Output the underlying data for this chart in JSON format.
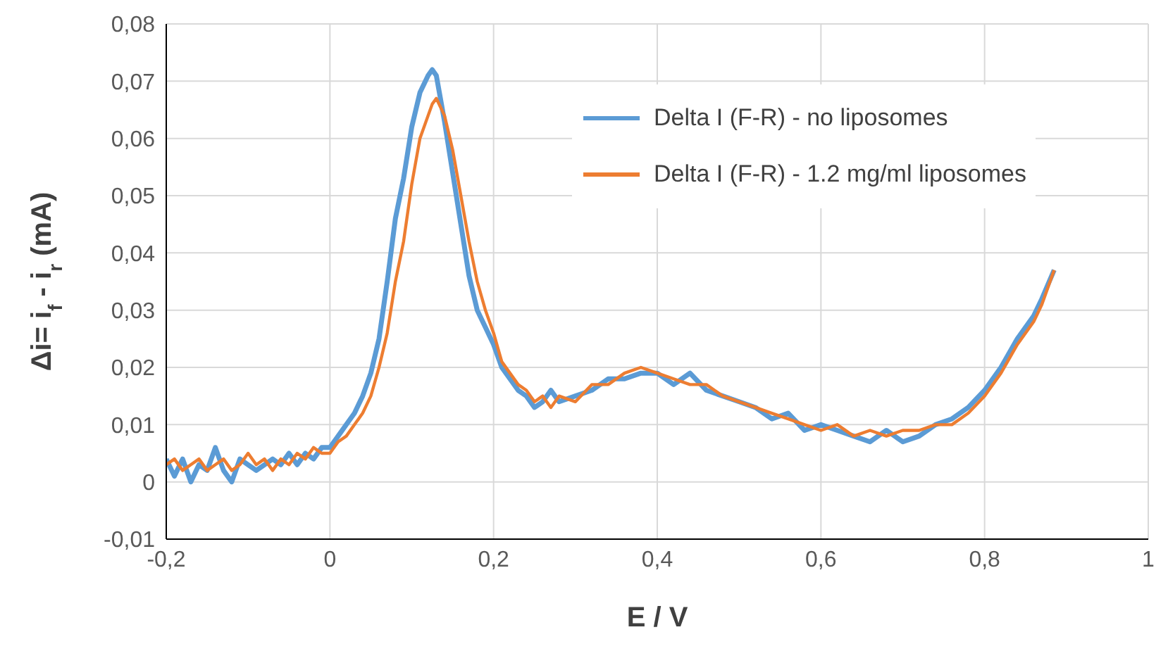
{
  "chart_data": {
    "type": "line",
    "xlabel": "E / V",
    "ylabel": "Δi= i$_{f}$ - i$_{r}$  (mA)",
    "x": [
      -0.2,
      -0.19,
      -0.18,
      -0.17,
      -0.16,
      -0.15,
      -0.14,
      -0.13,
      -0.12,
      -0.11,
      -0.1,
      -0.09,
      -0.08,
      -0.07,
      -0.06,
      -0.05,
      -0.04,
      -0.03,
      -0.02,
      -0.01,
      0,
      0.01,
      0.02,
      0.03,
      0.04,
      0.05,
      0.06,
      0.07,
      0.08,
      0.09,
      0.1,
      0.11,
      0.12,
      0.125,
      0.13,
      0.14,
      0.15,
      0.16,
      0.17,
      0.18,
      0.19,
      0.2,
      0.21,
      0.22,
      0.23,
      0.24,
      0.25,
      0.26,
      0.27,
      0.28,
      0.3,
      0.32,
      0.34,
      0.36,
      0.38,
      0.4,
      0.42,
      0.44,
      0.46,
      0.48,
      0.5,
      0.52,
      0.54,
      0.56,
      0.58,
      0.6,
      0.62,
      0.64,
      0.66,
      0.68,
      0.7,
      0.72,
      0.74,
      0.76,
      0.78,
      0.8,
      0.82,
      0.84,
      0.86,
      0.87,
      0.885
    ],
    "series": [
      {
        "name": "Delta I  (F-R) - no liposomes",
        "color": "#5b9bd5",
        "values": [
          0.004,
          0.001,
          0.004,
          0.0,
          0.003,
          0.002,
          0.006,
          0.002,
          0.0,
          0.004,
          0.003,
          0.002,
          0.003,
          0.004,
          0.003,
          0.005,
          0.003,
          0.005,
          0.004,
          0.006,
          0.006,
          0.008,
          0.01,
          0.012,
          0.015,
          0.019,
          0.025,
          0.035,
          0.046,
          0.053,
          0.062,
          0.068,
          0.071,
          0.072,
          0.071,
          0.063,
          0.054,
          0.045,
          0.036,
          0.03,
          0.027,
          0.024,
          0.02,
          0.018,
          0.016,
          0.015,
          0.013,
          0.014,
          0.016,
          0.014,
          0.015,
          0.016,
          0.018,
          0.018,
          0.019,
          0.019,
          0.017,
          0.019,
          0.016,
          0.015,
          0.014,
          0.013,
          0.011,
          0.012,
          0.009,
          0.01,
          0.009,
          0.008,
          0.007,
          0.009,
          0.007,
          0.008,
          0.01,
          0.011,
          0.013,
          0.016,
          0.02,
          0.025,
          0.029,
          0.032,
          0.037
        ]
      },
      {
        "name": "Delta I  (F-R) - 1.2 mg/ml liposomes",
        "color": "#ed7d31",
        "values": [
          0.003,
          0.004,
          0.002,
          0.003,
          0.004,
          0.002,
          0.003,
          0.004,
          0.002,
          0.003,
          0.005,
          0.003,
          0.004,
          0.002,
          0.004,
          0.003,
          0.005,
          0.004,
          0.006,
          0.005,
          0.005,
          0.007,
          0.008,
          0.01,
          0.012,
          0.015,
          0.02,
          0.026,
          0.035,
          0.042,
          0.052,
          0.06,
          0.064,
          0.066,
          0.067,
          0.064,
          0.058,
          0.05,
          0.042,
          0.035,
          0.03,
          0.026,
          0.021,
          0.019,
          0.017,
          0.016,
          0.014,
          0.015,
          0.013,
          0.015,
          0.014,
          0.017,
          0.017,
          0.019,
          0.02,
          0.019,
          0.018,
          0.017,
          0.017,
          0.015,
          0.014,
          0.013,
          0.012,
          0.011,
          0.01,
          0.009,
          0.01,
          0.008,
          0.009,
          0.008,
          0.009,
          0.009,
          0.01,
          0.01,
          0.012,
          0.015,
          0.019,
          0.024,
          0.028,
          0.031,
          0.037
        ]
      }
    ],
    "xlim": [
      -0.2,
      1
    ],
    "xticks": [
      {
        "value": -0.2,
        "label": "-0,2"
      },
      0,
      {
        "value": 0.2,
        "label": "0,2"
      },
      {
        "value": 0.4,
        "label": "0,4"
      },
      {
        "value": 0.6,
        "label": "0,6"
      },
      {
        "value": 0.8,
        "label": "0,8"
      },
      1
    ],
    "ylim": [
      -0.01,
      0.08
    ],
    "yticks": [
      {
        "value": -0.01,
        "label": "-0,01"
      },
      0,
      {
        "value": 0.01,
        "label": "0,01"
      },
      {
        "value": 0.02,
        "label": "0,02"
      },
      {
        "value": 0.03,
        "label": "0,03"
      },
      {
        "value": 0.04,
        "label": "0,04"
      },
      {
        "value": 0.05,
        "label": "0,05"
      },
      {
        "value": 0.06,
        "label": "0,06"
      },
      {
        "value": 0.07,
        "label": "0,07"
      },
      {
        "value": 0.08,
        "label": "0,08"
      }
    ],
    "grid": true,
    "legend": "top right",
    "marker": "none",
    "line_style": "solid"
  }
}
